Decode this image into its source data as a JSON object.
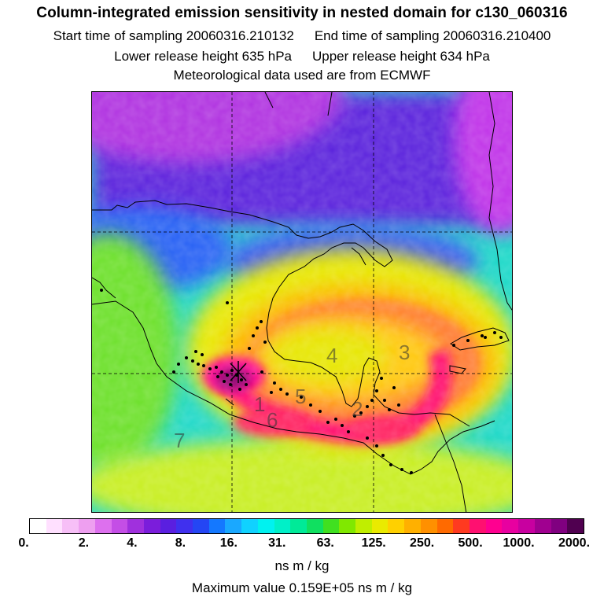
{
  "header": {
    "title": "Column-integrated emission sensitivity in nested domain for c130_060316",
    "start_label": "Start time of sampling 20060316.210132",
    "end_label": "End time of sampling 20060316.210400",
    "lower_label": "Lower release height  635 hPa",
    "upper_label": "Upper release height  634 hPa",
    "met_label": "Meteorological data used are from ECMWF"
  },
  "map": {
    "zone_labels": [
      "1",
      "2",
      "3",
      "4",
      "5",
      "6",
      "7"
    ]
  },
  "legend": {
    "colors": [
      "#ffffff",
      "#ffe0ff",
      "#f7bff7",
      "#ee9ff0",
      "#dd70ee",
      "#c44ee6",
      "#a030dd",
      "#7b1ddb",
      "#5a1fe0",
      "#4030ee",
      "#2446f4",
      "#1478ff",
      "#1aa8ff",
      "#10d2ff",
      "#00f2f0",
      "#00f0c8",
      "#00ea98",
      "#10e060",
      "#40e020",
      "#80e800",
      "#c0ee00",
      "#eaea00",
      "#ffd000",
      "#ffb000",
      "#ff9000",
      "#ff6a00",
      "#ff3a20",
      "#ff1070",
      "#ff0090",
      "#e800a0",
      "#c800a0",
      "#a00090",
      "#800080",
      "#500050"
    ],
    "ticks": [
      "0.",
      "2.",
      "4.",
      "8.",
      "16.",
      "31.",
      "63.",
      "125.",
      "250.",
      "500.",
      "1000.",
      "2000."
    ],
    "unit": "ns m / kg",
    "max_value": "Maximum value  0.159E+05 ns m / kg"
  }
}
